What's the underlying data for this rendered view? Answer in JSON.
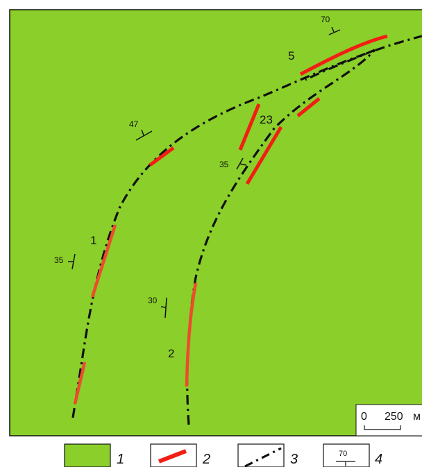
{
  "colors": {
    "background": "#8acf2a",
    "ore_body": "#f21e14",
    "ore_body_alt": "#ef4a2e",
    "fault": "#111111",
    "frame": "#111111"
  },
  "ore_body_labels": {
    "body_1": "1",
    "body_2": "2",
    "body_5": "5",
    "body_23": "23"
  },
  "dip_values": {
    "dip_70": "70",
    "dip_47": "47",
    "dip_35_right": "35",
    "dip_35_left": "35",
    "dip_30": "30"
  },
  "scale_bar": {
    "zero": "0",
    "distance": "250",
    "unit": "м"
  },
  "legend": {
    "item_1_number": "1",
    "item_2_number": "2",
    "item_3_number": "3",
    "item_4_number": "4",
    "item_4_dip_value": "70"
  },
  "icons": {
    "dip_symbol": "strike-dip-icon",
    "fault_line": "dash-dot-line",
    "ore_body": "red-bar"
  }
}
